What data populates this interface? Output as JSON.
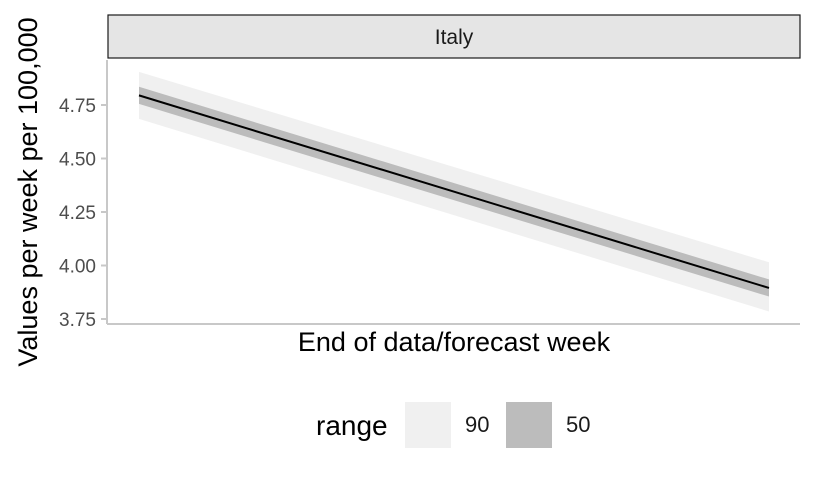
{
  "chart_data": {
    "type": "line",
    "facet": "Italy",
    "xlabel": "End of data/forecast week",
    "ylabel": "Values per week per 100,000",
    "ylim": [
      3.75,
      4.85
    ],
    "yticks": [
      3.75,
      4.0,
      4.25,
      4.5,
      4.75
    ],
    "ytick_labels": [
      "3.75",
      "4.00",
      "4.25",
      "4.50",
      "4.75"
    ],
    "x": [
      0,
      1
    ],
    "series": [
      {
        "role": "median",
        "values": [
          4.795,
          3.895
        ]
      }
    ],
    "ribbons": [
      {
        "range": "90",
        "lower": [
          4.685,
          3.785
        ],
        "upper": [
          4.905,
          4.015
        ]
      },
      {
        "range": "50",
        "lower": [
          4.755,
          3.855
        ],
        "upper": [
          4.835,
          3.935
        ]
      }
    ],
    "legend": {
      "title": "range",
      "position": "bottom",
      "items": [
        {
          "label": "90",
          "color": "#f0f0f0"
        },
        {
          "label": "50",
          "color": "#bcbcbc"
        }
      ]
    },
    "colors": {
      "line": "#000000",
      "ribbon90": "#f0f0f0",
      "ribbon50": "#bcbcbc",
      "strip": "#e5e5e5",
      "axis": "#c8c8c8"
    },
    "grid": false
  }
}
